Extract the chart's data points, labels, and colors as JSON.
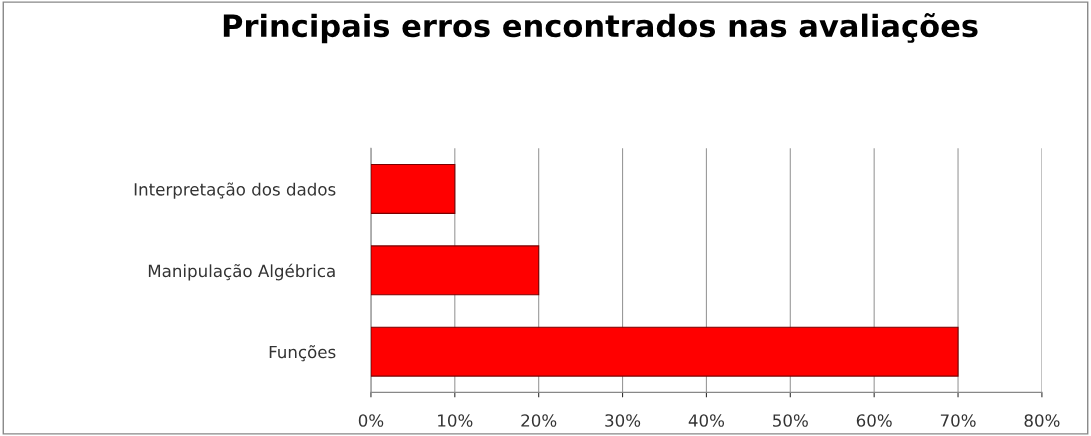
{
  "chart_data": {
    "type": "bar",
    "orientation": "horizontal",
    "title": "Principais erros encontrados nas avaliações",
    "categories": [
      "Interpretação dos dados",
      "Manipulação Algébrica",
      "Funções"
    ],
    "values": [
      10,
      20,
      70
    ],
    "color": "#ff0000",
    "xlim": [
      0,
      80
    ],
    "xticks": [
      {
        "value": 0,
        "label": "0%"
      },
      {
        "value": 10,
        "label": "10%"
      },
      {
        "value": 20,
        "label": "20%"
      },
      {
        "value": 30,
        "label": "30%"
      },
      {
        "value": 40,
        "label": "40%"
      },
      {
        "value": 50,
        "label": "50%"
      },
      {
        "value": 60,
        "label": "60%"
      },
      {
        "value": 70,
        "label": "70%"
      },
      {
        "value": 80,
        "label": "80%"
      }
    ],
    "grid": "x",
    "legend": false
  }
}
